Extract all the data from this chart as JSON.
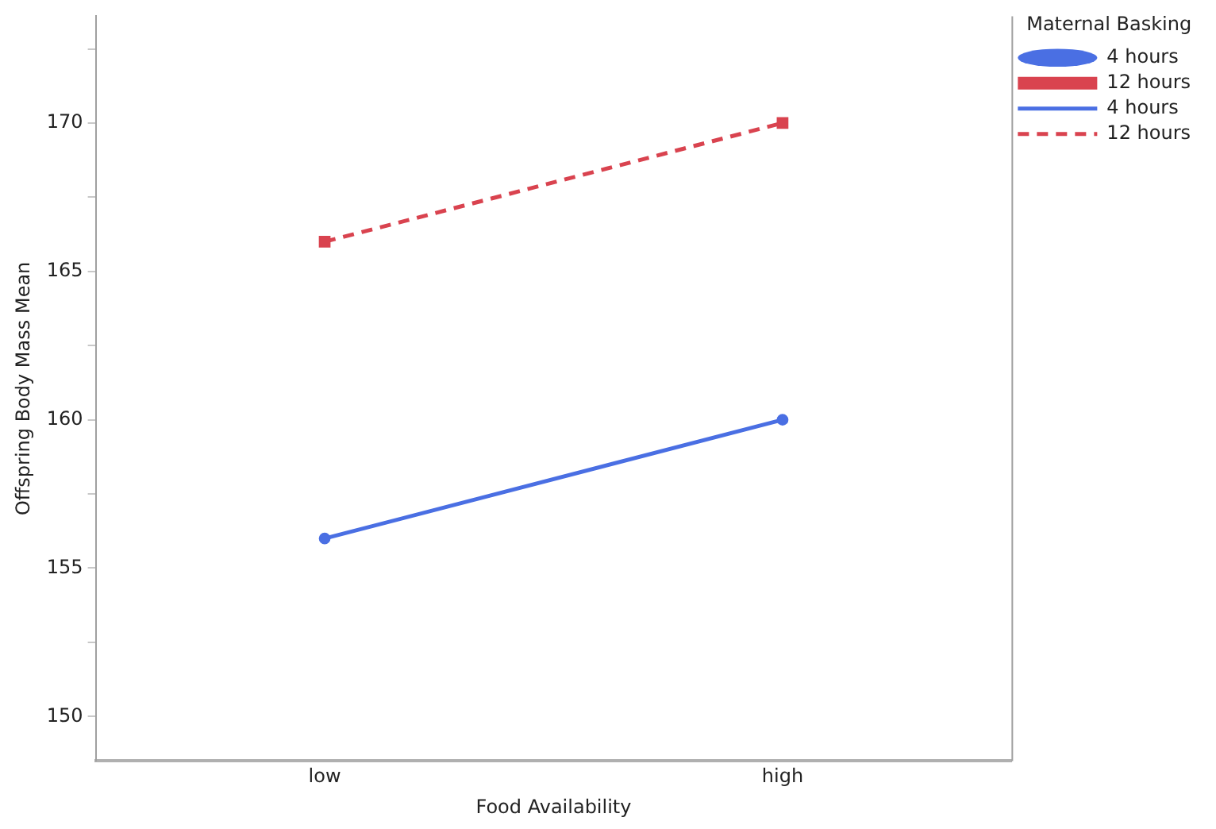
{
  "chart_data": {
    "type": "line",
    "xlabel": "Food Availability",
    "ylabel": "Offspring Body Mass Mean",
    "legend_title": "Maternal Basking",
    "legend": "top right",
    "grid": false,
    "categories": [
      "low",
      "high"
    ],
    "ylim": [
      148.5,
      173.6
    ],
    "yticks": [
      150,
      {
        "value": 152.5,
        "label": null
      },
      155,
      {
        "value": 157.5,
        "label": null
      },
      160,
      {
        "value": 162.5,
        "label": null
      },
      165,
      {
        "value": 167.5,
        "label": null
      },
      170,
      {
        "value": 172.5,
        "label": null
      }
    ],
    "series": [
      {
        "name": "4 hours",
        "type": "scatter",
        "marker": "circle",
        "color": "#4a6fe3",
        "x": [
          "low",
          "high"
        ],
        "values": [
          156,
          160
        ]
      },
      {
        "name": "12 hours",
        "type": "scatter",
        "marker": "square",
        "color": "#d9434f",
        "x": [
          "low",
          "high"
        ],
        "values": [
          166,
          170
        ]
      },
      {
        "name": "4 hours",
        "type": "line",
        "marker": "none",
        "line_style": "solid",
        "color": "#4a6fe3",
        "values": [
          156,
          160
        ]
      },
      {
        "name": "12 hours",
        "type": "line",
        "marker": "none",
        "line_style": "dashed",
        "color": "#d9434f",
        "values": [
          166,
          170
        ]
      }
    ]
  }
}
